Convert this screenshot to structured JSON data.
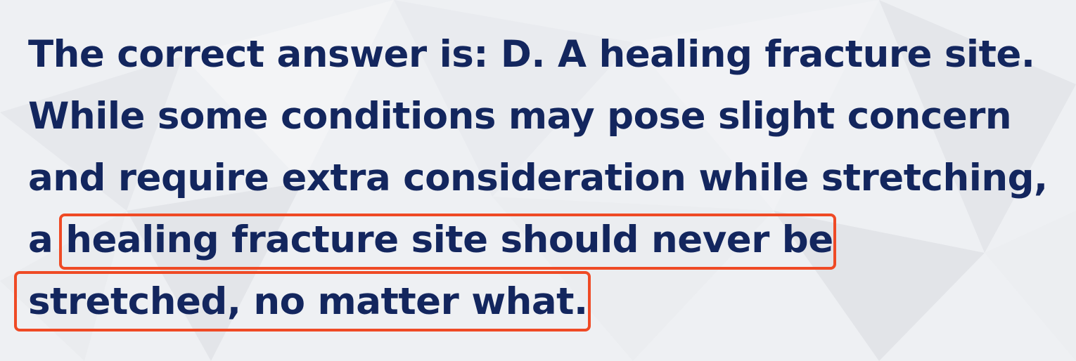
{
  "lines": [
    "The correct answer is: D. A healing fracture site.",
    "While some conditions may pose slight concern",
    "and require extra consideration while stretching,",
    "a healing fracture site should never be",
    "stretched, no matter what."
  ],
  "colors": {
    "text": "#13265e",
    "highlight_border": "#ef4a25",
    "background": "#eef0f3"
  }
}
